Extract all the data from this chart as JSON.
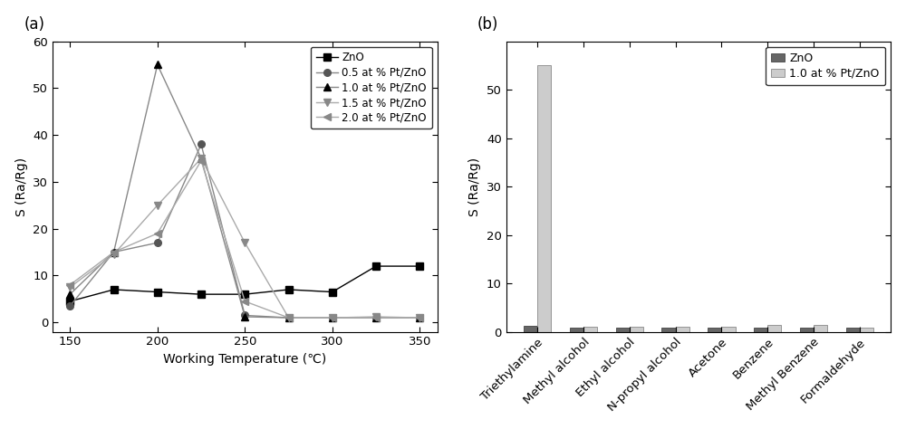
{
  "plot_a": {
    "temperatures": [
      150,
      175,
      200,
      225,
      250,
      275,
      300,
      325,
      350
    ],
    "ZnO": [
      4.5,
      7.0,
      6.5,
      6.0,
      6.0,
      7.0,
      6.5,
      12.0,
      12.0
    ],
    "Pt05": [
      3.5,
      15.0,
      17.0,
      38.0,
      1.5,
      1.0,
      1.0,
      1.0,
      1.0
    ],
    "Pt10": [
      6.0,
      15.0,
      55.0,
      35.0,
      1.2,
      1.0,
      1.0,
      1.0,
      1.0
    ],
    "Pt15": [
      7.5,
      14.5,
      25.0,
      35.0,
      17.0,
      1.0,
      1.0,
      1.2,
      1.0
    ],
    "Pt20": [
      8.0,
      15.0,
      19.0,
      34.5,
      4.5,
      1.0,
      1.0,
      1.0,
      1.0
    ],
    "line_colors": [
      "#000000",
      "#888888",
      "#888888",
      "#aaaaaa",
      "#aaaaaa"
    ],
    "marker_colors": [
      "#000000",
      "#555555",
      "#000000",
      "#888888",
      "#888888"
    ],
    "marker_styles": [
      "s",
      "o",
      "^",
      "v",
      "<"
    ],
    "ylabel": "S (Ra/Rg)",
    "xlabel": "Working Temperature (℃)",
    "ylim": [
      -2,
      60
    ],
    "yticks": [
      0,
      10,
      20,
      30,
      40,
      50,
      60
    ],
    "xlim": [
      140,
      360
    ],
    "xticks": [
      150,
      200,
      250,
      300,
      350
    ],
    "legend_labels": [
      "ZnO",
      "0.5 at % Pt/ZnO",
      "1.0 at % Pt/ZnO",
      "1.5 at % Pt/ZnO",
      "2.0 at % Pt/ZnO"
    ]
  },
  "plot_b": {
    "categories": [
      "Triethylamine",
      "Methyl alcohol",
      "Ethyl alcohol",
      "N-propyl alcohol",
      "Acetone",
      "Benzene",
      "Methyl Benzene",
      "Formaldehyde"
    ],
    "ZnO": [
      1.3,
      0.9,
      0.8,
      0.9,
      0.9,
      0.8,
      0.9,
      0.8
    ],
    "Pt10": [
      55.0,
      1.0,
      1.0,
      1.1,
      1.0,
      1.5,
      1.5,
      0.9
    ],
    "color_ZnO": "#666666",
    "color_Pt10": "#cccccc",
    "ylabel": "S (Ra/Rg)",
    "ylim": [
      0,
      60
    ],
    "yticks": [
      0,
      10,
      20,
      30,
      40,
      50
    ],
    "legend_labels": [
      "ZnO",
      "1.0 at % Pt/ZnO"
    ],
    "bar_width": 0.3
  }
}
